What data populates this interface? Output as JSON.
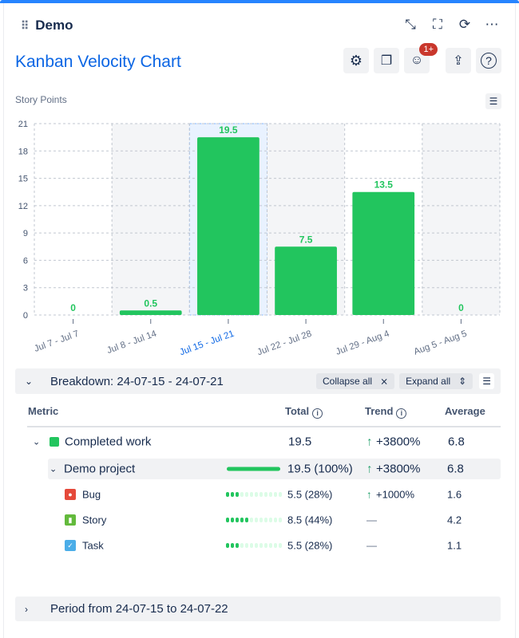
{
  "header": {
    "title": "Demo",
    "icons": [
      "minimize-icon",
      "fullscreen-icon",
      "refresh-icon",
      "more-icon"
    ]
  },
  "report": {
    "title": "Kanban Velocity Chart",
    "badge": "1+"
  },
  "chart_data": {
    "type": "bar",
    "ylabel": "Story Points",
    "ylim": [
      0,
      21
    ],
    "yticks": [
      0,
      3,
      6,
      9,
      12,
      15,
      18,
      21
    ],
    "categories": [
      "Jul 7 - Jul 7",
      "Jul 8 - Jul 14",
      "Jul 15 - Jul 21",
      "Jul 22 - Jul 28",
      "Jul 29 - Aug 4",
      "Aug 5 - Aug 5"
    ],
    "values": [
      0,
      0.5,
      19.5,
      7.5,
      13.5,
      0
    ],
    "labels": [
      "0",
      "0.5",
      "19.5",
      "7.5",
      "13.5",
      "0"
    ],
    "selected_index": 2,
    "bar_color": "#22c55e",
    "grid": true
  },
  "breakdown": {
    "title": "Breakdown: 24-07-15 - 24-07-21",
    "collapse_label": "Collapse all",
    "expand_label": "Expand all",
    "columns": [
      "Metric",
      "Total",
      "Trend",
      "Average"
    ],
    "completed": {
      "label": "Completed work",
      "total": "19.5",
      "trend": "+3800%",
      "average": "6.8",
      "color": "#22c55e"
    },
    "project": {
      "label": "Demo project",
      "total": "19.5 (100%)",
      "trend": "+3800%",
      "average": "6.8",
      "share": 100
    },
    "items": [
      {
        "label": "Bug",
        "total": "5.5 (28%)",
        "trend": "+1000%",
        "average": "1.6",
        "share": 28,
        "color": "#e5493a",
        "icon": "bug-icon"
      },
      {
        "label": "Story",
        "total": "8.5 (44%)",
        "trend": "—",
        "average": "4.2",
        "share": 44,
        "color": "#63ba3c",
        "icon": "story-icon"
      },
      {
        "label": "Task",
        "total": "5.5 (28%)",
        "trend": "—",
        "average": "1.1",
        "share": 28,
        "color": "#4bade8",
        "icon": "task-icon"
      }
    ]
  },
  "period": {
    "title": "Period from 24-07-15 to 24-07-22"
  }
}
